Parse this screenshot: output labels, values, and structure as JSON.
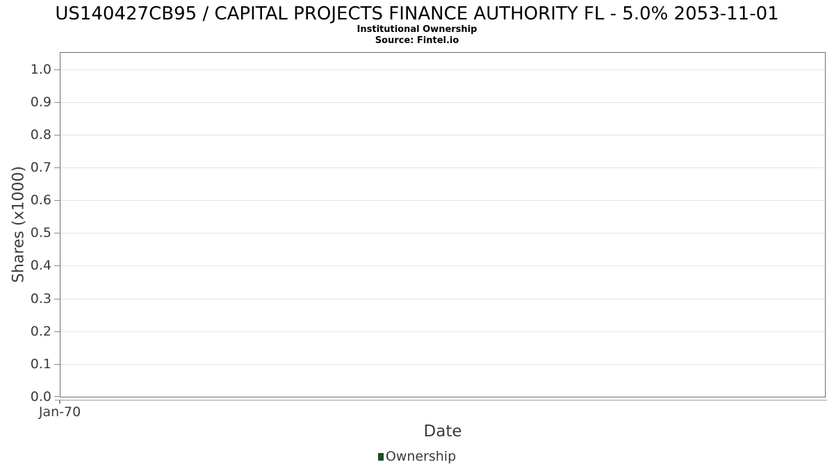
{
  "header": {
    "title": "US140427CB95 / CAPITAL PROJECTS FINANCE AUTHORITY FL - 5.0% 2053-11-01",
    "subtitle": "Institutional Ownership",
    "source": "Source: Fintel.io"
  },
  "chart_data": {
    "type": "line",
    "title": "US140427CB95 / CAPITAL PROJECTS FINANCE AUTHORITY FL - 5.0% 2053-11-01",
    "subtitle": "Institutional Ownership",
    "source": "Source: Fintel.io",
    "xlabel": "Date",
    "ylabel": "Shares (x1000)",
    "x_ticks": [
      "Jan-70"
    ],
    "y_ticks": [
      0,
      0.1,
      0.2,
      0.3,
      0.4,
      0.5,
      0.6,
      0.7,
      0.8,
      0.9,
      1.0
    ],
    "ylim": [
      0,
      1.05
    ],
    "grid": true,
    "legend_position": "bottom",
    "series": [
      {
        "name": "Ownership",
        "color": "#1d4f25",
        "x": [],
        "values": []
      }
    ]
  },
  "colors": {
    "title_text": "#000000",
    "plot_border": "#6d6d6d",
    "gridline": "#e4e4e8",
    "tick_mark": "#8a8a8a",
    "tick_label": "#3b3b3b",
    "axis_label": "#3b3b3b",
    "x_axis_line": "#c9c9c9",
    "legend_text": "#3b3b3b",
    "legend_marker": "#1d4f25"
  }
}
